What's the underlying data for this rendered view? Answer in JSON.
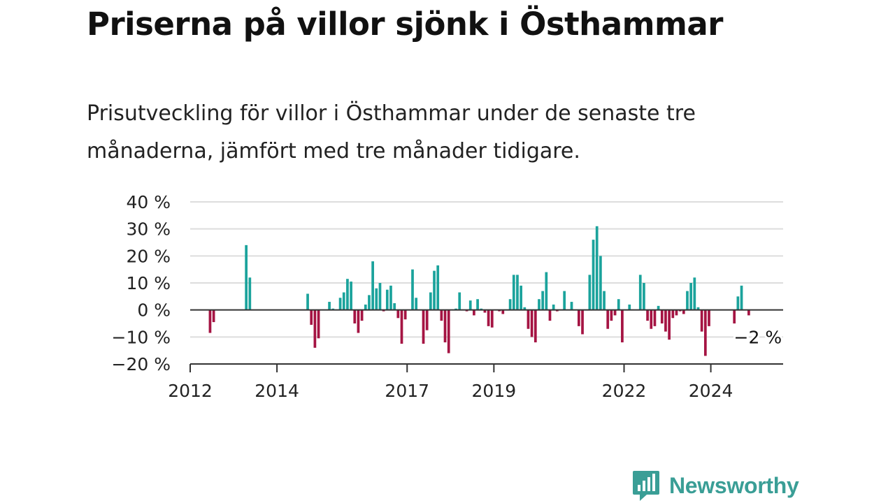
{
  "title": "Priserna på villor sjönk i Östhammar",
  "subtitle": "Prisutveckling för villor i Östhammar under de senaste tre månaderna, jämfört med tre månader tidigare.",
  "brand": "Newsworthy",
  "colors": {
    "positive": "#1ba39c",
    "negative": "#a51443",
    "grid": "#dddddd",
    "axis": "#333333",
    "brand": "#3a9e96"
  },
  "chart_data": {
    "type": "bar",
    "ylim": [
      -20,
      40
    ],
    "yticks": [
      {
        "value": -20,
        "label": "−20 %"
      },
      {
        "value": -10,
        "label": "−10 %"
      },
      {
        "value": 0,
        "label": "0 %"
      },
      {
        "value": 10,
        "label": "10 %"
      },
      {
        "value": 20,
        "label": "20 %"
      },
      {
        "value": 30,
        "label": "30 %"
      },
      {
        "value": 40,
        "label": "40 %"
      }
    ],
    "xlim": [
      "2012-01",
      "2025-09"
    ],
    "xticks": [
      {
        "date": "2012-01",
        "label": "2012"
      },
      {
        "date": "2014-01",
        "label": "2014"
      },
      {
        "date": "2017-01",
        "label": "2017"
      },
      {
        "date": "2019-01",
        "label": "2019"
      },
      {
        "date": "2022-01",
        "label": "2022"
      },
      {
        "date": "2024-01",
        "label": "2024"
      }
    ],
    "grid": true,
    "annotation": {
      "date": "2025-02",
      "value": -2,
      "label": "−2 %"
    },
    "series": [
      {
        "values": [
          {
            "date": "2012-06",
            "value": -8.5
          },
          {
            "date": "2012-07",
            "value": -4.5
          },
          {
            "date": "2013-04",
            "value": 24
          },
          {
            "date": "2013-05",
            "value": 12
          },
          {
            "date": "2014-09",
            "value": 6
          },
          {
            "date": "2014-10",
            "value": -5.5
          },
          {
            "date": "2014-11",
            "value": -14
          },
          {
            "date": "2014-12",
            "value": -10.5
          },
          {
            "date": "2015-03",
            "value": 3
          },
          {
            "date": "2015-04",
            "value": 0.5
          },
          {
            "date": "2015-06",
            "value": 4.5
          },
          {
            "date": "2015-07",
            "value": 6.5
          },
          {
            "date": "2015-08",
            "value": 11.5
          },
          {
            "date": "2015-09",
            "value": 10.5
          },
          {
            "date": "2015-10",
            "value": -5
          },
          {
            "date": "2015-11",
            "value": -8.5
          },
          {
            "date": "2015-12",
            "value": -4
          },
          {
            "date": "2016-01",
            "value": 2
          },
          {
            "date": "2016-02",
            "value": 5.5
          },
          {
            "date": "2016-03",
            "value": 18
          },
          {
            "date": "2016-04",
            "value": 8
          },
          {
            "date": "2016-05",
            "value": 10
          },
          {
            "date": "2016-06",
            "value": -0.5
          },
          {
            "date": "2016-07",
            "value": 7.5
          },
          {
            "date": "2016-08",
            "value": 9
          },
          {
            "date": "2016-09",
            "value": 2.5
          },
          {
            "date": "2016-10",
            "value": -3
          },
          {
            "date": "2016-11",
            "value": -12.5
          },
          {
            "date": "2016-12",
            "value": -3.5
          },
          {
            "date": "2017-02",
            "value": 15
          },
          {
            "date": "2017-03",
            "value": 4.5
          },
          {
            "date": "2017-05",
            "value": -12.5
          },
          {
            "date": "2017-06",
            "value": -7.5
          },
          {
            "date": "2017-07",
            "value": 6.5
          },
          {
            "date": "2017-08",
            "value": 14.5
          },
          {
            "date": "2017-09",
            "value": 16.5
          },
          {
            "date": "2017-10",
            "value": -4
          },
          {
            "date": "2017-11",
            "value": -12
          },
          {
            "date": "2017-12",
            "value": -16
          },
          {
            "date": "2018-02",
            "value": 0.5
          },
          {
            "date": "2018-03",
            "value": 6.5
          },
          {
            "date": "2018-05",
            "value": -0.5
          },
          {
            "date": "2018-06",
            "value": 3.5
          },
          {
            "date": "2018-07",
            "value": -2
          },
          {
            "date": "2018-08",
            "value": 4
          },
          {
            "date": "2018-09",
            "value": 0.5
          },
          {
            "date": "2018-10",
            "value": -1
          },
          {
            "date": "2018-11",
            "value": -6
          },
          {
            "date": "2018-12",
            "value": -6.5
          },
          {
            "date": "2019-02",
            "value": -0.5
          },
          {
            "date": "2019-03",
            "value": -1.5
          },
          {
            "date": "2019-05",
            "value": 4
          },
          {
            "date": "2019-06",
            "value": 13
          },
          {
            "date": "2019-07",
            "value": 13
          },
          {
            "date": "2019-08",
            "value": 9
          },
          {
            "date": "2019-09",
            "value": 1
          },
          {
            "date": "2019-10",
            "value": -7
          },
          {
            "date": "2019-11",
            "value": -10
          },
          {
            "date": "2019-12",
            "value": -12
          },
          {
            "date": "2020-01",
            "value": 4
          },
          {
            "date": "2020-02",
            "value": 7
          },
          {
            "date": "2020-03",
            "value": 14
          },
          {
            "date": "2020-04",
            "value": -4
          },
          {
            "date": "2020-05",
            "value": 2
          },
          {
            "date": "2020-06",
            "value": -0.5
          },
          {
            "date": "2020-08",
            "value": 7
          },
          {
            "date": "2020-10",
            "value": 3
          },
          {
            "date": "2020-12",
            "value": -6
          },
          {
            "date": "2021-01",
            "value": -9
          },
          {
            "date": "2021-03",
            "value": 13
          },
          {
            "date": "2021-04",
            "value": 26
          },
          {
            "date": "2021-05",
            "value": 31
          },
          {
            "date": "2021-06",
            "value": 20
          },
          {
            "date": "2021-07",
            "value": 7
          },
          {
            "date": "2021-08",
            "value": -7
          },
          {
            "date": "2021-09",
            "value": -4
          },
          {
            "date": "2021-10",
            "value": -2
          },
          {
            "date": "2021-11",
            "value": 4
          },
          {
            "date": "2021-12",
            "value": -12
          },
          {
            "date": "2022-02",
            "value": 2
          },
          {
            "date": "2022-05",
            "value": 13
          },
          {
            "date": "2022-06",
            "value": 10
          },
          {
            "date": "2022-07",
            "value": -4
          },
          {
            "date": "2022-08",
            "value": -7
          },
          {
            "date": "2022-09",
            "value": -6
          },
          {
            "date": "2022-10",
            "value": 1.5
          },
          {
            "date": "2022-11",
            "value": -5
          },
          {
            "date": "2022-12",
            "value": -8
          },
          {
            "date": "2023-01",
            "value": -11
          },
          {
            "date": "2023-02",
            "value": -3
          },
          {
            "date": "2023-03",
            "value": -2
          },
          {
            "date": "2023-04",
            "value": -0.5
          },
          {
            "date": "2023-05",
            "value": -1.5
          },
          {
            "date": "2023-06",
            "value": 7
          },
          {
            "date": "2023-07",
            "value": 10
          },
          {
            "date": "2023-08",
            "value": 12
          },
          {
            "date": "2023-09",
            "value": 1
          },
          {
            "date": "2023-10",
            "value": -8
          },
          {
            "date": "2023-11",
            "value": -17
          },
          {
            "date": "2023-12",
            "value": -6
          },
          {
            "date": "2024-07",
            "value": -5
          },
          {
            "date": "2024-08",
            "value": 5
          },
          {
            "date": "2024-09",
            "value": 9
          },
          {
            "date": "2024-11",
            "value": -2
          }
        ]
      }
    ]
  }
}
